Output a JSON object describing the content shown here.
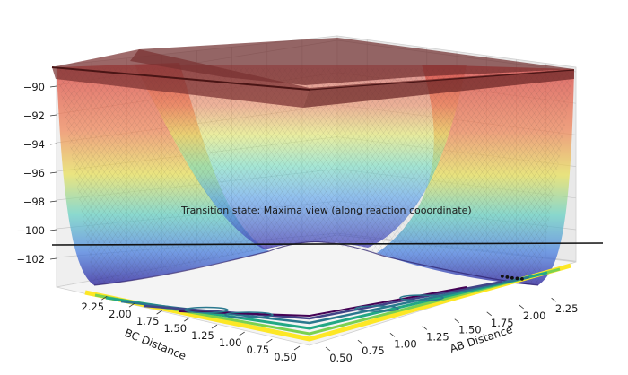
{
  "chart_data": {
    "type": "surface3d",
    "title": "",
    "annotation": "Transition state: Maxima view (along reaction cooordinate)",
    "xlabel": "BC Distance",
    "ylabel": "AB Distance",
    "zlabel": "",
    "x_ticks": [
      "0.50",
      "0.75",
      "1.00",
      "1.25",
      "1.50",
      "1.75",
      "2.00",
      "2.25"
    ],
    "y_ticks": [
      "0.50",
      "0.75",
      "1.00",
      "1.25",
      "1.50",
      "1.75",
      "2.00",
      "2.25"
    ],
    "z_ticks": [
      "-90",
      "-92",
      "-94",
      "-96",
      "-98",
      "-100",
      "-102"
    ],
    "xlim": [
      0.5,
      2.35
    ],
    "ylim": [
      0.5,
      2.35
    ],
    "zlim": [
      -103.8,
      -89.2
    ],
    "colormap": "jet",
    "floor_colormap": "viridis",
    "transition_state_plane_z": -89.8,
    "transition_state_line_z": -101.1,
    "grid": true,
    "minimum_energy_path_points": [
      {
        "ab": 1.95,
        "bc": 0.74,
        "z": -103.1
      },
      {
        "ab": 1.99,
        "bc": 0.74,
        "z": -103.3
      },
      {
        "ab": 2.03,
        "bc": 0.74,
        "z": -103.5
      },
      {
        "ab": 2.07,
        "bc": 0.74,
        "z": -103.6
      },
      {
        "ab": 2.11,
        "bc": 0.74,
        "z": -103.7
      }
    ]
  }
}
